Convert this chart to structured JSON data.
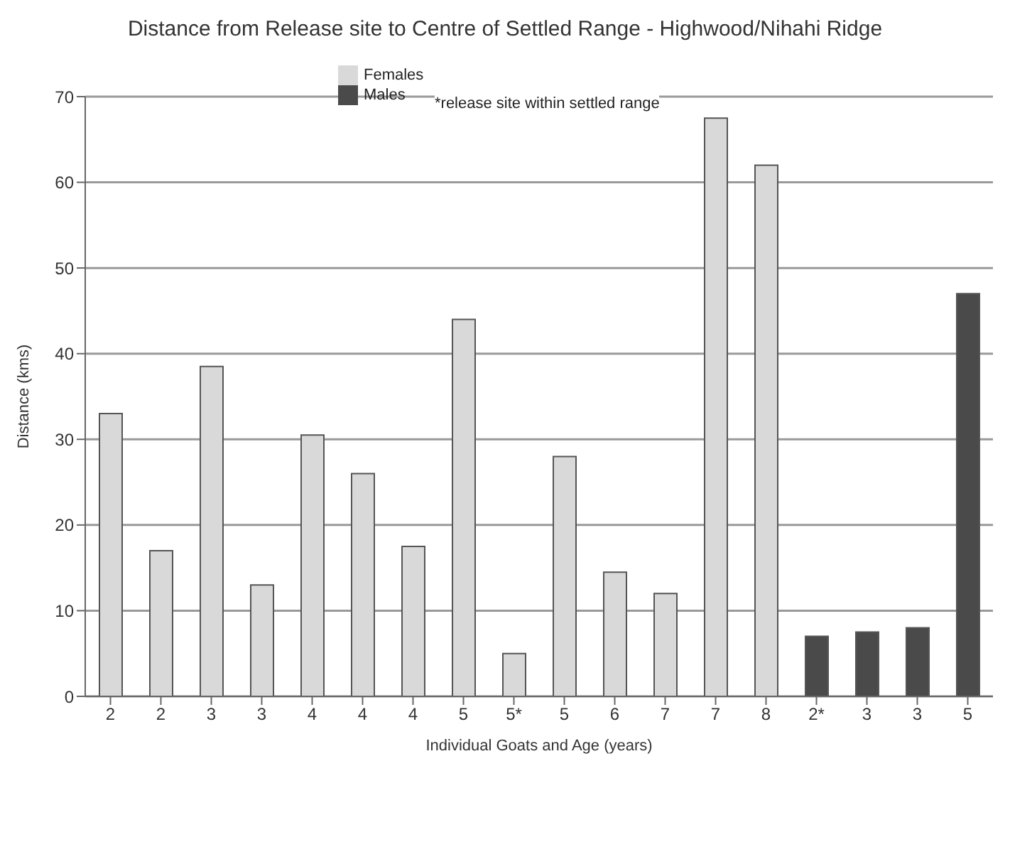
{
  "chart_data": {
    "type": "bar",
    "title": "Distance from Release site to Centre of Settled Range - Highwood/Nihahi Ridge",
    "xlabel": "Individual Goats and Age (years)",
    "ylabel": "Distance (kms)",
    "categories": [
      "2",
      "2",
      "3",
      "3",
      "4",
      "4",
      "4",
      "5",
      "5*",
      "5",
      "6",
      "7",
      "7",
      "8",
      "2*",
      "3",
      "3",
      "5"
    ],
    "series": [
      {
        "name": "Females",
        "color": "#d9d9d9",
        "values": [
          33,
          17,
          38.5,
          13,
          30.5,
          26,
          17.5,
          44,
          5,
          28,
          14.5,
          12,
          67.5,
          62,
          null,
          null,
          null,
          null
        ]
      },
      {
        "name": "Males",
        "color": "#4a4a4a",
        "values": [
          null,
          null,
          null,
          null,
          null,
          null,
          null,
          null,
          null,
          null,
          null,
          null,
          null,
          null,
          7,
          7.5,
          8,
          47
        ]
      }
    ],
    "annotations": [
      "*release site within settled range"
    ],
    "ylim": [
      0,
      70
    ],
    "yticks": [
      0,
      10,
      20,
      30,
      40,
      50,
      60,
      70
    ],
    "grid": "y",
    "legend": "top"
  }
}
